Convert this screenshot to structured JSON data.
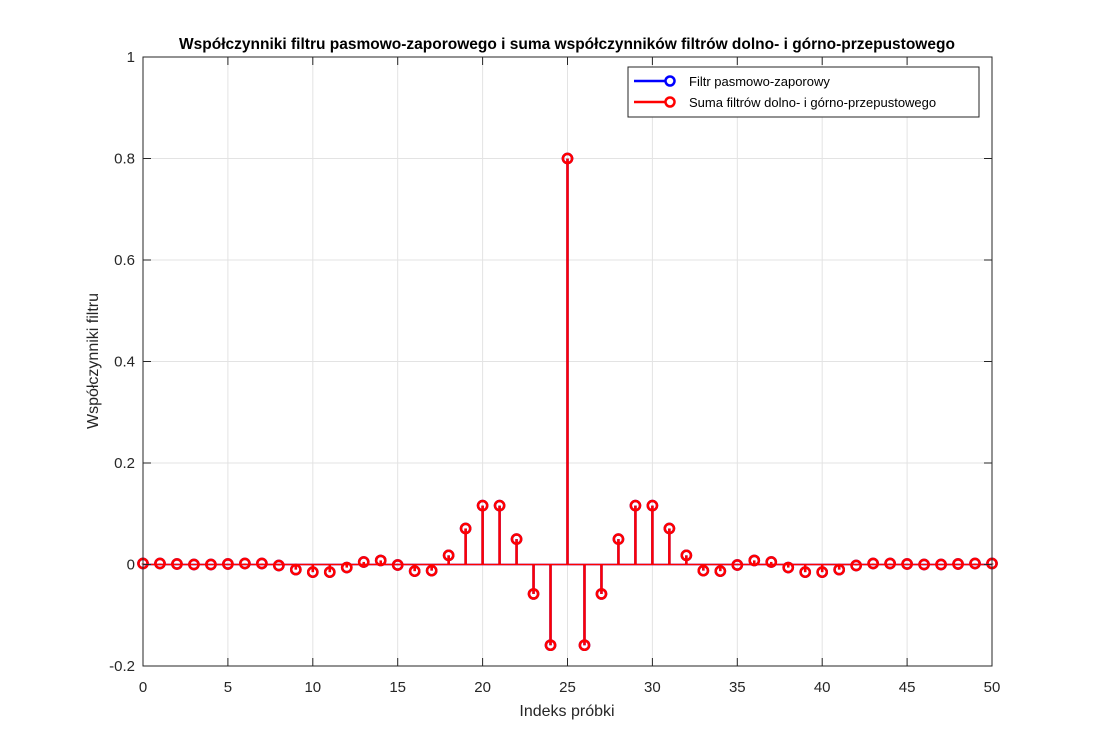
{
  "chart_data": {
    "type": "stem",
    "title": "Współczynniki filtru pasmowo-zaporowego i suma współczynników filtrów dolno- i górno-przepustowego",
    "xlabel": "Indeks próbki",
    "ylabel": "Współczynniki filtru",
    "xlim": [
      0,
      50
    ],
    "ylim": [
      -0.2,
      1
    ],
    "xticks": [
      0,
      5,
      10,
      15,
      20,
      25,
      30,
      35,
      40,
      45,
      50
    ],
    "yticks": [
      -0.2,
      0,
      0.2,
      0.4,
      0.6,
      0.8,
      1
    ],
    "xtick_labels": [
      "0",
      "5",
      "10",
      "15",
      "20",
      "25",
      "30",
      "35",
      "40",
      "45",
      "50"
    ],
    "ytick_labels": [
      "-0.2",
      "0",
      "0.2",
      "0.4",
      "0.6",
      "0.8",
      "1"
    ],
    "grid": true,
    "legend_position": "top-right",
    "x": [
      0,
      1,
      2,
      3,
      4,
      5,
      6,
      7,
      8,
      9,
      10,
      11,
      12,
      13,
      14,
      15,
      16,
      17,
      18,
      19,
      20,
      21,
      22,
      23,
      24,
      25,
      26,
      27,
      28,
      29,
      30,
      31,
      32,
      33,
      34,
      35,
      36,
      37,
      38,
      39,
      40,
      41,
      42,
      43,
      44,
      45,
      46,
      47,
      48,
      49,
      50
    ],
    "series": [
      {
        "name": "Filtr pasmowo-zaporowy",
        "color": "#0000ff",
        "values": [
          0.002,
          0.002,
          0.001,
          0,
          0,
          0.001,
          0.002,
          0.002,
          -0.002,
          -0.01,
          -0.015,
          -0.015,
          -0.006,
          0.005,
          0.008,
          -0.001,
          -0.013,
          -0.012,
          0.018,
          0.071,
          0.116,
          0.116,
          0.05,
          -0.058,
          -0.159,
          0.8,
          -0.159,
          -0.058,
          0.05,
          0.116,
          0.116,
          0.071,
          0.018,
          -0.012,
          -0.013,
          -0.001,
          0.008,
          0.005,
          -0.006,
          -0.015,
          -0.015,
          -0.01,
          -0.002,
          0.002,
          0.002,
          0.001,
          0,
          0,
          0.001,
          0.002,
          0.002
        ]
      },
      {
        "name": "Suma filtrów dolno- i górno-przepustowego",
        "color": "#ff0000",
        "values": [
          0.002,
          0.002,
          0.001,
          0,
          0,
          0.001,
          0.002,
          0.002,
          -0.002,
          -0.01,
          -0.015,
          -0.015,
          -0.006,
          0.005,
          0.008,
          -0.001,
          -0.013,
          -0.012,
          0.018,
          0.071,
          0.116,
          0.116,
          0.05,
          -0.058,
          -0.159,
          0.8,
          -0.159,
          -0.058,
          0.05,
          0.116,
          0.116,
          0.071,
          0.018,
          -0.012,
          -0.013,
          -0.001,
          0.008,
          0.005,
          -0.006,
          -0.015,
          -0.015,
          -0.01,
          -0.002,
          0.002,
          0.002,
          0.001,
          0,
          0,
          0.001,
          0.002,
          0.002
        ]
      }
    ]
  }
}
